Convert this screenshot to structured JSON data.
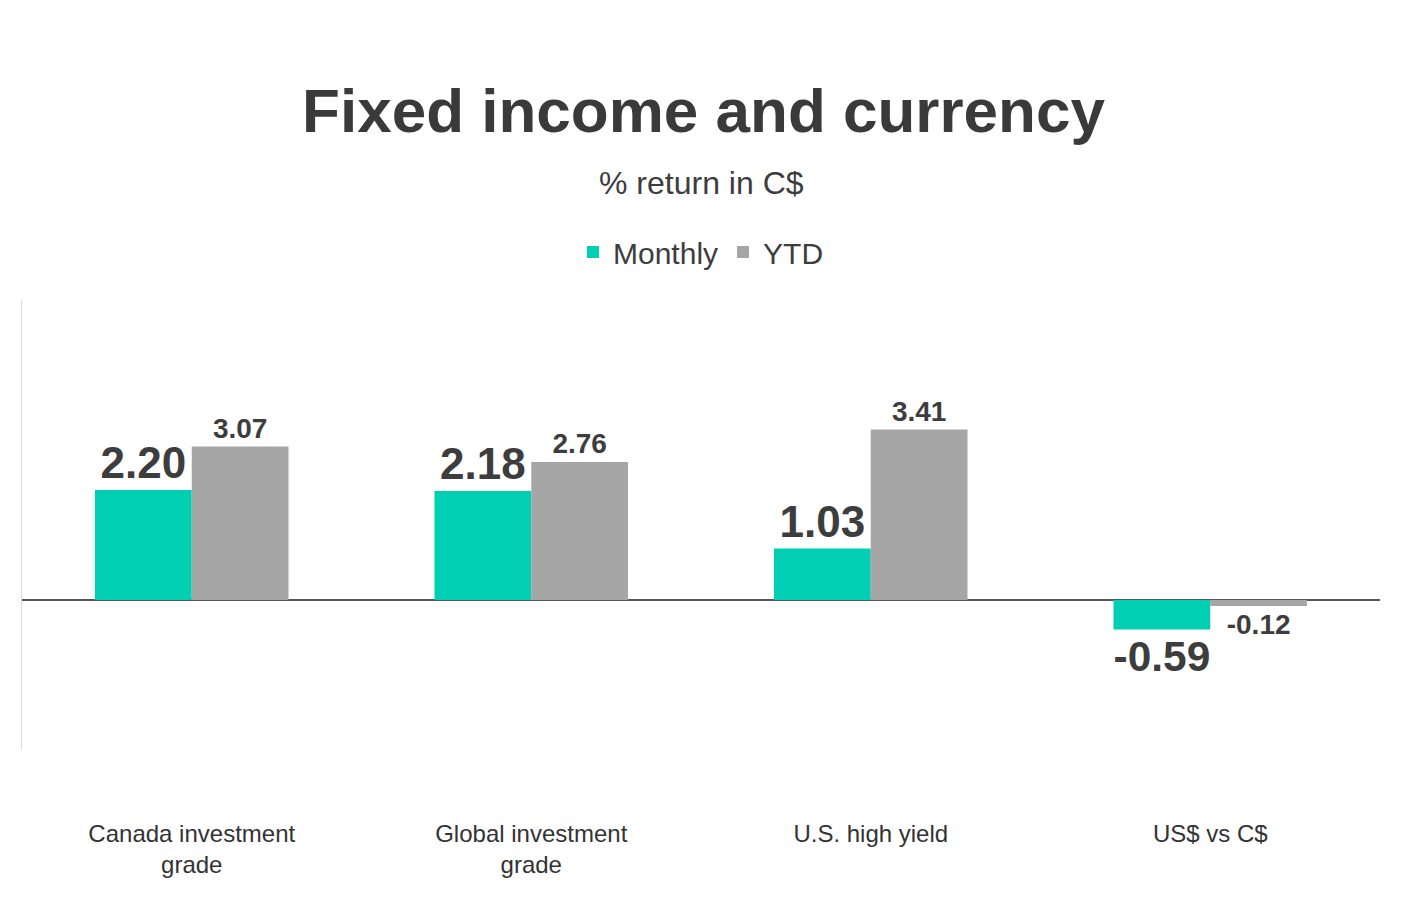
{
  "chart_data": {
    "type": "bar",
    "title": "Fixed income and currency",
    "subtitle": "% return in C$",
    "categories": [
      "Canada investment grade",
      "Global investment grade",
      "U.S. high yield",
      "US$ vs C$"
    ],
    "series": [
      {
        "name": "Monthly",
        "color": "#00cfb4",
        "values": [
          2.2,
          2.18,
          1.03,
          -0.59
        ],
        "value_labels": [
          "2.20",
          "2.18",
          "1.03",
          "-0.59"
        ]
      },
      {
        "name": "YTD",
        "color": "#a6a6a6",
        "values": [
          3.07,
          2.76,
          3.41,
          -0.12
        ]
      }
    ],
    "ylim": [
      -3,
      6
    ],
    "grid": false,
    "legend": "top",
    "data_labels": true,
    "tick_labels": "x"
  }
}
